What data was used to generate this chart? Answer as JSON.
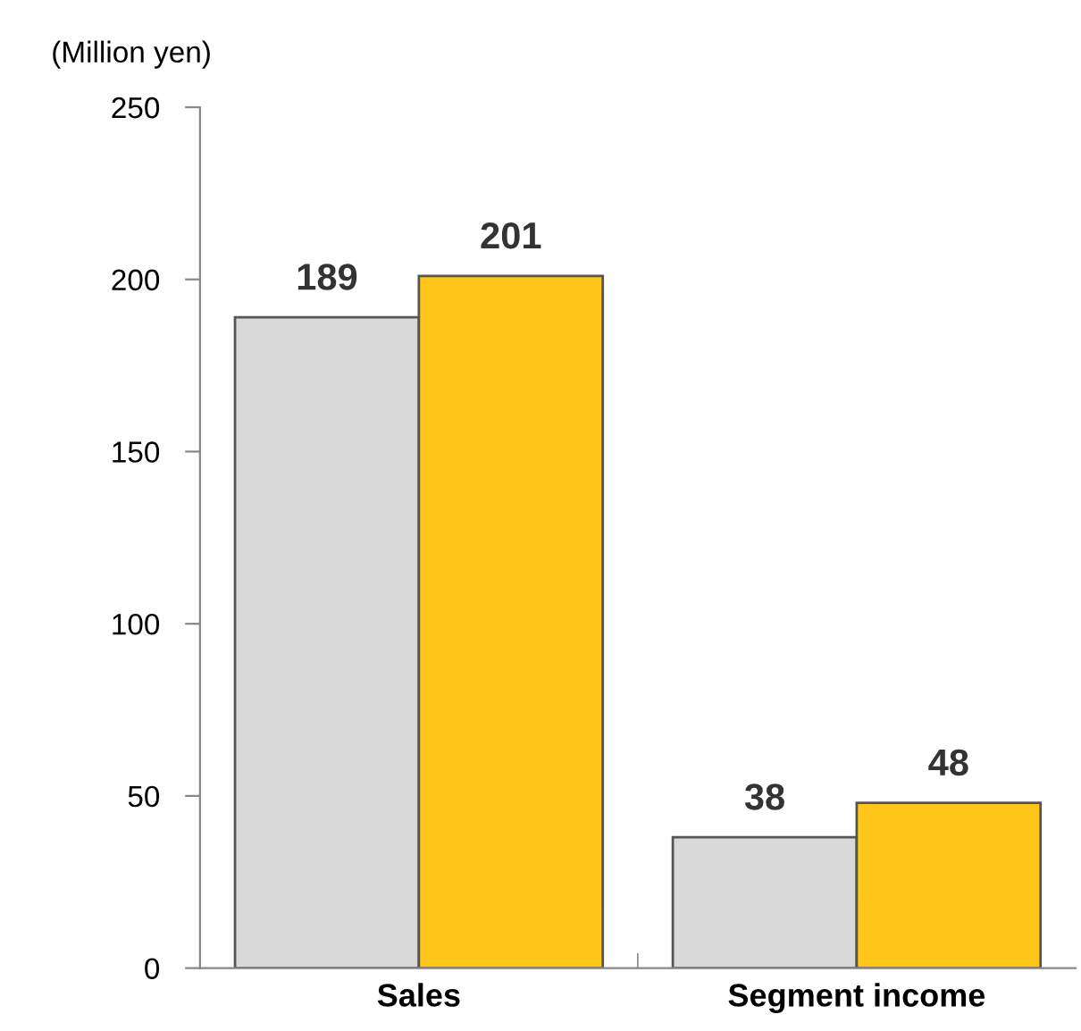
{
  "chart_data": {
    "type": "bar",
    "ylabel": "(Million yen)",
    "categories": [
      "Sales",
      "Segment income"
    ],
    "series": [
      {
        "color": "#d9d9d9",
        "values": [
          189,
          38
        ]
      },
      {
        "color": "#ffc619",
        "values": [
          201,
          48
        ]
      }
    ],
    "ylim": [
      0,
      250
    ],
    "yticks": [
      0,
      50,
      100,
      150,
      200,
      250
    ],
    "data_labels": true,
    "grid": false,
    "legend": false
  }
}
